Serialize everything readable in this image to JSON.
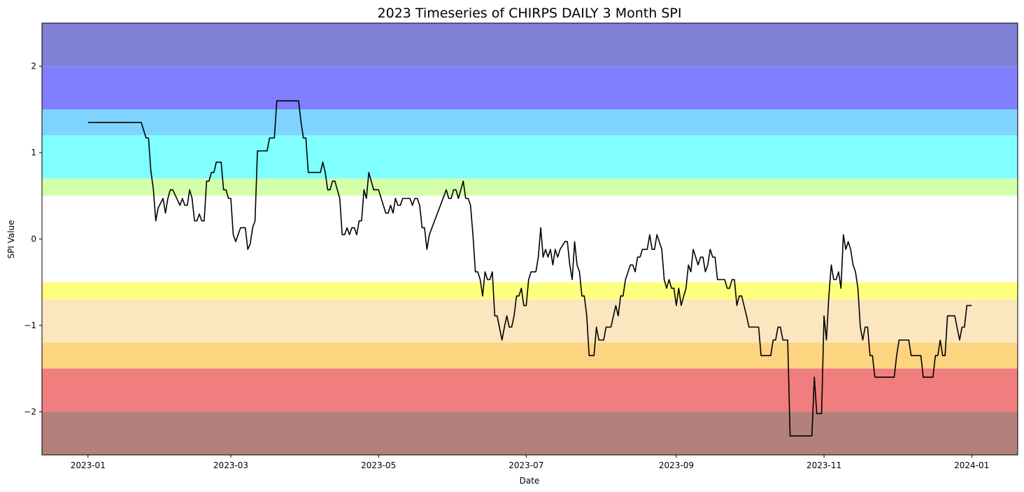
{
  "chart_data": {
    "type": "line",
    "title": "2023 Timeseries of CHIRPS DAILY 3 Month SPI",
    "xlabel": "Date",
    "ylabel": "SPI Value",
    "xlim": [
      "2022-12-13",
      "2024-01-20"
    ],
    "ylim": [
      -2.5,
      2.5
    ],
    "x_ticks": [
      "2023-01",
      "2023-03",
      "2023-05",
      "2023-07",
      "2023-09",
      "2023-11",
      "2024-01"
    ],
    "y_ticks": [
      -2,
      -1,
      0,
      1,
      2
    ],
    "y_tick_labels": [
      "−2",
      "−1",
      "0",
      "1",
      "2"
    ],
    "grid": false,
    "bands": [
      {
        "from": 2.0,
        "to": 2.5,
        "color": "#7f7fd4"
      },
      {
        "from": 1.5,
        "to": 2.0,
        "color": "#7f7fff"
      },
      {
        "from": 1.2,
        "to": 1.5,
        "color": "#7fd4ff"
      },
      {
        "from": 0.7,
        "to": 1.2,
        "color": "#7fffff"
      },
      {
        "from": 0.5,
        "to": 0.7,
        "color": "#d4ffaa"
      },
      {
        "from": -0.5,
        "to": 0.5,
        "color": "#ffffff"
      },
      {
        "from": -0.7,
        "to": -0.5,
        "color": "#ffff7f"
      },
      {
        "from": -1.2,
        "to": -0.7,
        "color": "#fce6c0"
      },
      {
        "from": -1.5,
        "to": -1.2,
        "color": "#fdd480"
      },
      {
        "from": -2.0,
        "to": -1.5,
        "color": "#f07e7e"
      },
      {
        "from": -2.5,
        "to": -2.0,
        "color": "#b4807b"
      }
    ],
    "series": [
      {
        "color": "#000000",
        "points": [
          [
            "2023-01-01",
            1.35
          ],
          [
            "2023-01-23",
            1.35
          ],
          [
            "2023-01-25",
            1.17
          ],
          [
            "2023-01-26",
            1.17
          ],
          [
            "2023-01-27",
            0.78
          ],
          [
            "2023-01-28",
            0.58
          ],
          [
            "2023-01-29",
            0.21
          ],
          [
            "2023-01-30",
            0.36
          ],
          [
            "2023-02-01",
            0.47
          ],
          [
            "2023-02-02",
            0.3
          ],
          [
            "2023-02-03",
            0.47
          ],
          [
            "2023-02-04",
            0.57
          ],
          [
            "2023-02-05",
            0.57
          ],
          [
            "2023-02-07",
            0.45
          ],
          [
            "2023-02-08",
            0.39
          ],
          [
            "2023-02-09",
            0.47
          ],
          [
            "2023-02-10",
            0.39
          ],
          [
            "2023-02-11",
            0.39
          ],
          [
            "2023-02-12",
            0.57
          ],
          [
            "2023-02-13",
            0.47
          ],
          [
            "2023-02-14",
            0.21
          ],
          [
            "2023-02-15",
            0.21
          ],
          [
            "2023-02-16",
            0.29
          ],
          [
            "2023-02-17",
            0.21
          ],
          [
            "2023-02-18",
            0.21
          ],
          [
            "2023-02-19",
            0.67
          ],
          [
            "2023-02-20",
            0.67
          ],
          [
            "2023-02-21",
            0.77
          ],
          [
            "2023-02-22",
            0.77
          ],
          [
            "2023-02-23",
            0.89
          ],
          [
            "2023-02-25",
            0.89
          ],
          [
            "2023-02-26",
            0.57
          ],
          [
            "2023-02-27",
            0.57
          ],
          [
            "2023-02-28",
            0.47
          ],
          [
            "2023-03-01",
            0.47
          ],
          [
            "2023-03-02",
            0.05
          ],
          [
            "2023-03-03",
            -0.03
          ],
          [
            "2023-03-04",
            0.05
          ],
          [
            "2023-03-05",
            0.13
          ],
          [
            "2023-03-07",
            0.13
          ],
          [
            "2023-03-08",
            -0.12
          ],
          [
            "2023-03-09",
            -0.06
          ],
          [
            "2023-03-10",
            0.13
          ],
          [
            "2023-03-11",
            0.21
          ],
          [
            "2023-03-12",
            1.02
          ],
          [
            "2023-03-16",
            1.02
          ],
          [
            "2023-03-17",
            1.17
          ],
          [
            "2023-03-19",
            1.17
          ],
          [
            "2023-03-20",
            1.6
          ],
          [
            "2023-03-29",
            1.6
          ],
          [
            "2023-03-30",
            1.35
          ],
          [
            "2023-03-31",
            1.17
          ],
          [
            "2023-04-01",
            1.17
          ],
          [
            "2023-04-02",
            0.77
          ],
          [
            "2023-04-07",
            0.77
          ],
          [
            "2023-04-08",
            0.89
          ],
          [
            "2023-04-09",
            0.77
          ],
          [
            "2023-04-10",
            0.57
          ],
          [
            "2023-04-11",
            0.57
          ],
          [
            "2023-04-12",
            0.67
          ],
          [
            "2023-04-13",
            0.67
          ],
          [
            "2023-04-15",
            0.47
          ],
          [
            "2023-04-16",
            0.05
          ],
          [
            "2023-04-17",
            0.05
          ],
          [
            "2023-04-18",
            0.13
          ],
          [
            "2023-04-19",
            0.05
          ],
          [
            "2023-04-20",
            0.13
          ],
          [
            "2023-04-21",
            0.13
          ],
          [
            "2023-04-22",
            0.05
          ],
          [
            "2023-04-23",
            0.21
          ],
          [
            "2023-04-24",
            0.21
          ],
          [
            "2023-04-25",
            0.57
          ],
          [
            "2023-04-26",
            0.47
          ],
          [
            "2023-04-27",
            0.77
          ],
          [
            "2023-04-29",
            0.57
          ],
          [
            "2023-05-01",
            0.57
          ],
          [
            "2023-05-04",
            0.3
          ],
          [
            "2023-05-05",
            0.3
          ],
          [
            "2023-05-06",
            0.39
          ],
          [
            "2023-05-07",
            0.3
          ],
          [
            "2023-05-08",
            0.47
          ],
          [
            "2023-05-09",
            0.39
          ],
          [
            "2023-05-10",
            0.39
          ],
          [
            "2023-05-11",
            0.47
          ],
          [
            "2023-05-14",
            0.47
          ],
          [
            "2023-05-15",
            0.39
          ],
          [
            "2023-05-16",
            0.47
          ],
          [
            "2023-05-17",
            0.47
          ],
          [
            "2023-05-18",
            0.39
          ],
          [
            "2023-05-19",
            0.13
          ],
          [
            "2023-05-20",
            0.13
          ],
          [
            "2023-05-21",
            -0.12
          ],
          [
            "2023-05-22",
            0.05
          ],
          [
            "2023-05-29",
            0.57
          ],
          [
            "2023-05-30",
            0.47
          ],
          [
            "2023-05-31",
            0.47
          ],
          [
            "2023-06-01",
            0.57
          ],
          [
            "2023-06-02",
            0.57
          ],
          [
            "2023-06-03",
            0.47
          ],
          [
            "2023-06-05",
            0.67
          ],
          [
            "2023-06-06",
            0.47
          ],
          [
            "2023-06-07",
            0.47
          ],
          [
            "2023-06-08",
            0.39
          ],
          [
            "2023-06-09",
            0.05
          ],
          [
            "2023-06-10",
            -0.38
          ],
          [
            "2023-06-11",
            -0.38
          ],
          [
            "2023-06-12",
            -0.47
          ],
          [
            "2023-06-13",
            -0.66
          ],
          [
            "2023-06-14",
            -0.38
          ],
          [
            "2023-06-15",
            -0.47
          ],
          [
            "2023-06-16",
            -0.47
          ],
          [
            "2023-06-17",
            -0.38
          ],
          [
            "2023-06-18",
            -0.89
          ],
          [
            "2023-06-19",
            -0.89
          ],
          [
            "2023-06-21",
            -1.17
          ],
          [
            "2023-06-22",
            -1.02
          ],
          [
            "2023-06-23",
            -0.89
          ],
          [
            "2023-06-24",
            -1.02
          ],
          [
            "2023-06-25",
            -1.02
          ],
          [
            "2023-06-26",
            -0.89
          ],
          [
            "2023-06-27",
            -0.66
          ],
          [
            "2023-06-28",
            -0.66
          ],
          [
            "2023-06-29",
            -0.57
          ],
          [
            "2023-06-30",
            -0.77
          ],
          [
            "2023-07-01",
            -0.77
          ],
          [
            "2023-07-02",
            -0.47
          ],
          [
            "2023-07-03",
            -0.38
          ],
          [
            "2023-07-05",
            -0.38
          ],
          [
            "2023-07-06",
            -0.21
          ],
          [
            "2023-07-07",
            0.13
          ],
          [
            "2023-07-08",
            -0.21
          ],
          [
            "2023-07-09",
            -0.12
          ],
          [
            "2023-07-10",
            -0.21
          ],
          [
            "2023-07-11",
            -0.12
          ],
          [
            "2023-07-12",
            -0.3
          ],
          [
            "2023-07-13",
            -0.12
          ],
          [
            "2023-07-14",
            -0.21
          ],
          [
            "2023-07-15",
            -0.12
          ],
          [
            "2023-07-17",
            -0.03
          ],
          [
            "2023-07-18",
            -0.03
          ],
          [
            "2023-07-19",
            -0.3
          ],
          [
            "2023-07-20",
            -0.47
          ],
          [
            "2023-07-21",
            -0.03
          ],
          [
            "2023-07-22",
            -0.3
          ],
          [
            "2023-07-23",
            -0.38
          ],
          [
            "2023-07-24",
            -0.66
          ],
          [
            "2023-07-25",
            -0.66
          ],
          [
            "2023-07-26",
            -0.89
          ],
          [
            "2023-07-27",
            -1.35
          ],
          [
            "2023-07-29",
            -1.35
          ],
          [
            "2023-07-30",
            -1.02
          ],
          [
            "2023-07-31",
            -1.17
          ],
          [
            "2023-08-02",
            -1.17
          ],
          [
            "2023-08-03",
            -1.02
          ],
          [
            "2023-08-05",
            -1.02
          ],
          [
            "2023-08-07",
            -0.77
          ],
          [
            "2023-08-08",
            -0.89
          ],
          [
            "2023-08-09",
            -0.66
          ],
          [
            "2023-08-10",
            -0.66
          ],
          [
            "2023-08-11",
            -0.47
          ],
          [
            "2023-08-13",
            -0.3
          ],
          [
            "2023-08-14",
            -0.3
          ],
          [
            "2023-08-15",
            -0.38
          ],
          [
            "2023-08-16",
            -0.21
          ],
          [
            "2023-08-17",
            -0.21
          ],
          [
            "2023-08-18",
            -0.12
          ],
          [
            "2023-08-20",
            -0.12
          ],
          [
            "2023-08-21",
            0.05
          ],
          [
            "2023-08-22",
            -0.12
          ],
          [
            "2023-08-23",
            -0.12
          ],
          [
            "2023-08-24",
            0.05
          ],
          [
            "2023-08-26",
            -0.12
          ],
          [
            "2023-08-27",
            -0.47
          ],
          [
            "2023-08-28",
            -0.57
          ],
          [
            "2023-08-29",
            -0.47
          ],
          [
            "2023-08-30",
            -0.57
          ],
          [
            "2023-08-31",
            -0.57
          ],
          [
            "2023-09-01",
            -0.77
          ],
          [
            "2023-09-02",
            -0.57
          ],
          [
            "2023-09-03",
            -0.77
          ],
          [
            "2023-09-05",
            -0.57
          ],
          [
            "2023-09-06",
            -0.3
          ],
          [
            "2023-09-07",
            -0.38
          ],
          [
            "2023-09-08",
            -0.12
          ],
          [
            "2023-09-10",
            -0.3
          ],
          [
            "2023-09-11",
            -0.21
          ],
          [
            "2023-09-12",
            -0.21
          ],
          [
            "2023-09-13",
            -0.38
          ],
          [
            "2023-09-14",
            -0.3
          ],
          [
            "2023-09-15",
            -0.12
          ],
          [
            "2023-09-16",
            -0.21
          ],
          [
            "2023-09-17",
            -0.21
          ],
          [
            "2023-09-18",
            -0.47
          ],
          [
            "2023-09-21",
            -0.47
          ],
          [
            "2023-09-22",
            -0.57
          ],
          [
            "2023-09-23",
            -0.57
          ],
          [
            "2023-09-24",
            -0.47
          ],
          [
            "2023-09-25",
            -0.47
          ],
          [
            "2023-09-26",
            -0.77
          ],
          [
            "2023-09-27",
            -0.66
          ],
          [
            "2023-09-28",
            -0.66
          ],
          [
            "2023-09-30",
            -0.89
          ],
          [
            "2023-10-01",
            -1.02
          ],
          [
            "2023-10-05",
            -1.02
          ],
          [
            "2023-10-06",
            -1.35
          ],
          [
            "2023-10-10",
            -1.35
          ],
          [
            "2023-10-11",
            -1.17
          ],
          [
            "2023-10-12",
            -1.17
          ],
          [
            "2023-10-13",
            -1.02
          ],
          [
            "2023-10-14",
            -1.02
          ],
          [
            "2023-10-15",
            -1.17
          ],
          [
            "2023-10-17",
            -1.17
          ],
          [
            "2023-10-18",
            -2.28
          ],
          [
            "2023-10-27",
            -2.28
          ],
          [
            "2023-10-28",
            -1.6
          ],
          [
            "2023-10-29",
            -2.02
          ],
          [
            "2023-10-31",
            -2.02
          ],
          [
            "2023-11-01",
            -0.89
          ],
          [
            "2023-11-02",
            -1.17
          ],
          [
            "2023-11-03",
            -0.66
          ],
          [
            "2023-11-04",
            -0.3
          ],
          [
            "2023-11-05",
            -0.47
          ],
          [
            "2023-11-06",
            -0.47
          ],
          [
            "2023-11-07",
            -0.38
          ],
          [
            "2023-11-08",
            -0.57
          ],
          [
            "2023-11-09",
            0.05
          ],
          [
            "2023-11-10",
            -0.12
          ],
          [
            "2023-11-11",
            -0.03
          ],
          [
            "2023-11-12",
            -0.12
          ],
          [
            "2023-11-13",
            -0.3
          ],
          [
            "2023-11-14",
            -0.38
          ],
          [
            "2023-11-15",
            -0.57
          ],
          [
            "2023-11-16",
            -1.02
          ],
          [
            "2023-11-17",
            -1.17
          ],
          [
            "2023-11-18",
            -1.02
          ],
          [
            "2023-11-19",
            -1.02
          ],
          [
            "2023-11-20",
            -1.35
          ],
          [
            "2023-11-21",
            -1.35
          ],
          [
            "2023-11-22",
            -1.6
          ],
          [
            "2023-11-30",
            -1.6
          ],
          [
            "2023-12-01",
            -1.35
          ],
          [
            "2023-12-02",
            -1.17
          ],
          [
            "2023-12-06",
            -1.17
          ],
          [
            "2023-12-07",
            -1.35
          ],
          [
            "2023-12-11",
            -1.35
          ],
          [
            "2023-12-12",
            -1.6
          ],
          [
            "2023-12-16",
            -1.6
          ],
          [
            "2023-12-17",
            -1.35
          ],
          [
            "2023-12-18",
            -1.35
          ],
          [
            "2023-12-19",
            -1.17
          ],
          [
            "2023-12-20",
            -1.35
          ],
          [
            "2023-12-21",
            -1.35
          ],
          [
            "2023-12-22",
            -0.89
          ],
          [
            "2023-12-25",
            -0.89
          ],
          [
            "2023-12-27",
            -1.17
          ],
          [
            "2023-12-28",
            -1.02
          ],
          [
            "2023-12-29",
            -1.02
          ],
          [
            "2023-12-30",
            -0.77
          ],
          [
            "2024-01-01",
            -0.77
          ]
        ]
      }
    ]
  }
}
